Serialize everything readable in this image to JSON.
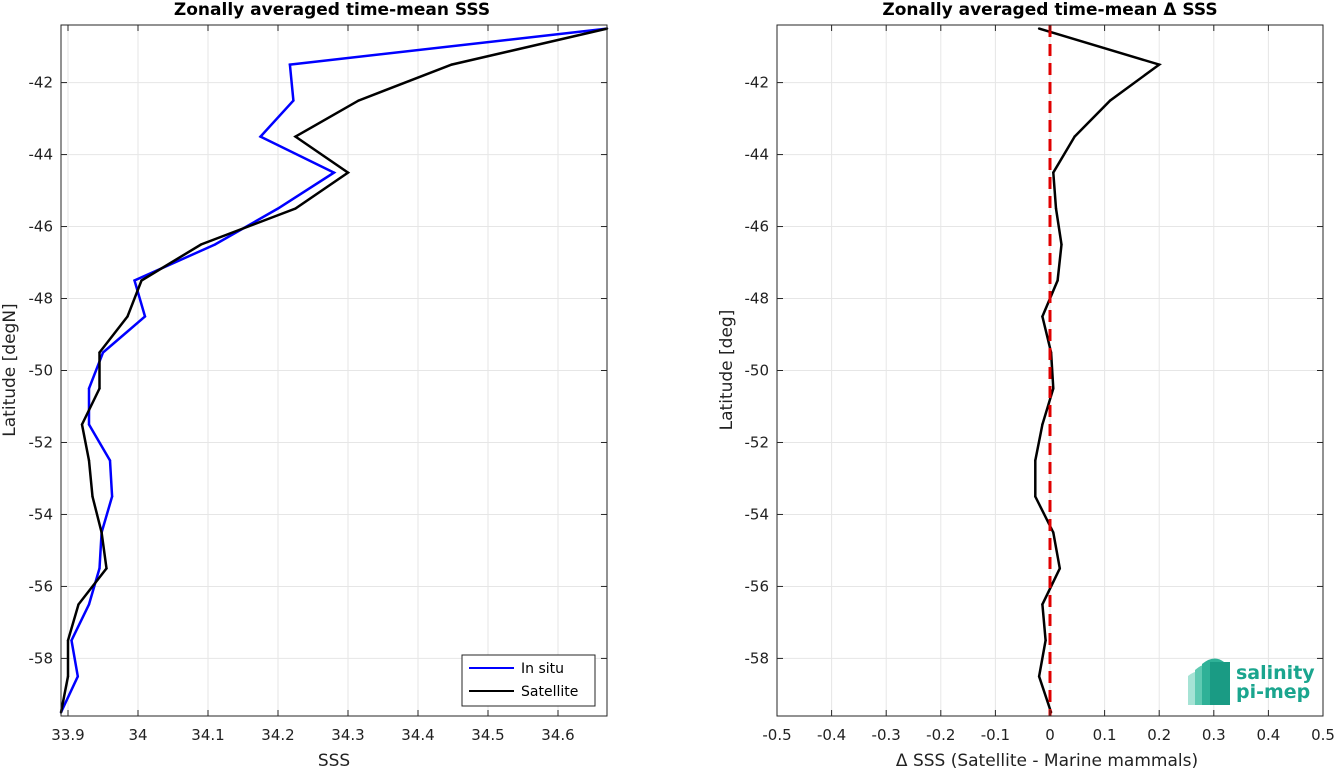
{
  "chart_data": [
    {
      "type": "line",
      "title": "Zonally averaged time-mean SSS",
      "xlabel": "SSS",
      "ylabel": "Latitude [degN]",
      "xlim": [
        33.89,
        34.67
      ],
      "ylim": [
        -59.6,
        -40.4
      ],
      "xticks": [
        "33.9",
        "34",
        "34.1",
        "34.2",
        "34.3",
        "34.4",
        "34.5",
        "34.6"
      ],
      "yticks": [
        "-42",
        "-44",
        "-46",
        "-48",
        "-50",
        "-52",
        "-54",
        "-56",
        "-58"
      ],
      "grid": true,
      "legend_position": "bottom-right",
      "y": [
        -40.5,
        -41.5,
        -42.5,
        -43.5,
        -44.5,
        -45.5,
        -46.5,
        -47.5,
        -48.5,
        -49.5,
        -50.5,
        -51.5,
        -52.5,
        -53.5,
        -54.5,
        -55.5,
        -56.5,
        -57.5,
        -58.5,
        -59.5
      ],
      "series": [
        {
          "name": "In situ",
          "color": "#0000ff",
          "values": [
            34.67,
            34.217,
            34.222,
            34.175,
            34.28,
            34.2,
            34.11,
            33.995,
            34.01,
            33.95,
            33.93,
            33.93,
            33.96,
            33.963,
            33.948,
            33.945,
            33.93,
            33.905,
            33.914,
            33.89
          ]
        },
        {
          "name": "Satellite",
          "color": "#000000",
          "values": [
            34.67,
            34.448,
            34.315,
            34.225,
            34.3,
            34.225,
            34.09,
            34.005,
            33.985,
            33.945,
            33.945,
            33.92,
            33.93,
            33.935,
            33.948,
            33.955,
            33.915,
            33.9,
            33.9,
            33.89
          ]
        }
      ]
    },
    {
      "type": "line",
      "title": "Zonally averaged time-mean Δ SSS",
      "xlabel": "Δ SSS (Satellite - Marine mammals)",
      "ylabel": "Latitude [deg]",
      "xlim": [
        -0.5,
        0.5
      ],
      "ylim": [
        -59.6,
        -40.4
      ],
      "xticks": [
        "-0.5",
        "-0.4",
        "-0.3",
        "-0.2",
        "-0.1",
        "0",
        "0.1",
        "0.2",
        "0.3",
        "0.4",
        "0.5"
      ],
      "yticks": [
        "-42",
        "-44",
        "-46",
        "-48",
        "-50",
        "-52",
        "-54",
        "-56",
        "-58"
      ],
      "grid": true,
      "reference_line": {
        "x": 0,
        "color": "#e00000",
        "style": "dashed"
      },
      "y": [
        -40.5,
        -41.5,
        -42.5,
        -43.5,
        -44.5,
        -45.5,
        -46.5,
        -47.5,
        -48.5,
        -49.5,
        -50.5,
        -51.5,
        -52.5,
        -53.5,
        -54.5,
        -55.5,
        -56.5,
        -57.5,
        -58.5,
        -59.5
      ],
      "series": [
        {
          "color": "#000000",
          "values": [
            -0.02,
            0.2,
            0.11,
            0.045,
            0.006,
            0.011,
            0.021,
            0.014,
            -0.014,
            0.002,
            0.006,
            -0.014,
            -0.027,
            -0.027,
            0.006,
            0.018,
            -0.014,
            -0.008,
            -0.02,
            0.002
          ]
        }
      ]
    }
  ],
  "logo": {
    "line1": "salinity",
    "line2": "pi-mep",
    "color": "#1aa58e"
  }
}
